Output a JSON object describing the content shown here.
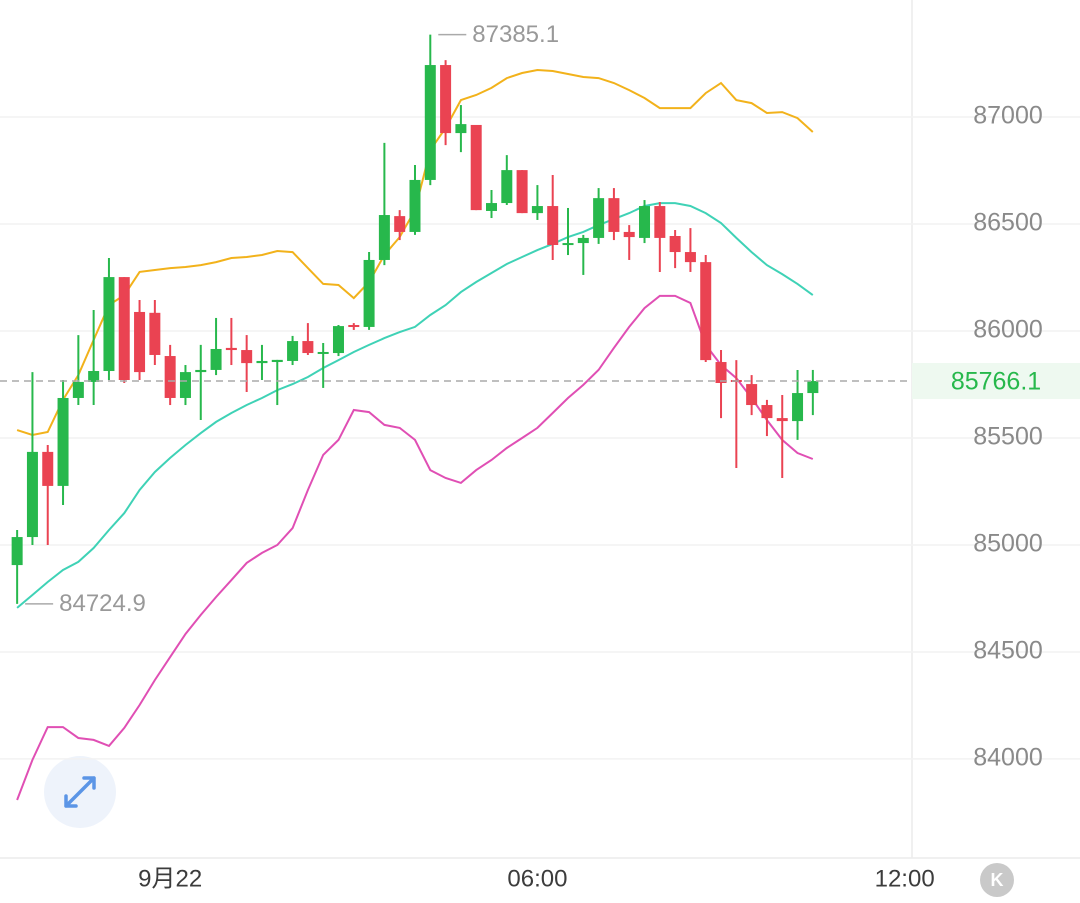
{
  "chart_data": {
    "type": "candlestick",
    "x": [
      -2.5,
      -2.25,
      -2,
      -1.75,
      -1.5,
      -1.25,
      -1,
      -0.75,
      -0.5,
      -0.25,
      0,
      0.25,
      0.5,
      0.75,
      1,
      1.25,
      1.5,
      1.75,
      2,
      2.25,
      2.5,
      2.75,
      3,
      3.25,
      3.5,
      3.75,
      4,
      4.25,
      4.5,
      4.75,
      5,
      5.25,
      5.5,
      5.75,
      6,
      6.25,
      6.5,
      6.75,
      7,
      7.25,
      7.5,
      7.75,
      8,
      8.25,
      8.5,
      8.75,
      9,
      9.25,
      9.5,
      9.75,
      10,
      10.25,
      10.5
    ],
    "open": [
      84906,
      85037,
      85435,
      85276,
      85687,
      85762,
      85813,
      86252,
      86089,
      86085,
      85883,
      85687,
      85808,
      85818,
      85921,
      85911,
      85850,
      85855,
      85860,
      85953,
      85893,
      85897,
      86028,
      86019,
      86332,
      86537,
      86463,
      86706,
      87243,
      86925,
      86963,
      86561,
      86598,
      86752,
      86551,
      86584,
      86402,
      86411,
      86435,
      86621,
      86463,
      86435,
      86584,
      86444,
      86369,
      86322,
      85855,
      85771,
      85752,
      85654,
      85593,
      85579,
      85710
    ],
    "high": [
      85070,
      85808,
      85467,
      85771,
      85981,
      86098,
      86341,
      86252,
      86145,
      86145,
      85935,
      85841,
      85935,
      86061,
      86061,
      85981,
      85935,
      85865,
      85977,
      86037,
      85944,
      86028,
      86037,
      86369,
      86879,
      86565,
      86776,
      87385.1,
      87266,
      87056,
      86963,
      86659,
      86822,
      86752,
      86682,
      86729,
      86575,
      86449,
      86668,
      86668,
      86495,
      86612,
      86603,
      86472,
      86481,
      86355,
      85911,
      85864,
      85794,
      85678,
      85701,
      85818,
      85818
    ],
    "low": [
      84724.9,
      85000,
      85000,
      85187,
      85654,
      85654,
      85771,
      85757,
      85771,
      85841,
      85654,
      85654,
      85584,
      85794,
      85841,
      85715,
      85771,
      85654,
      85841,
      85888,
      85734,
      85883,
      86005,
      86005,
      86308,
      86425,
      86449,
      86682,
      86869,
      86836,
      86565,
      86528,
      86589,
      86551,
      86519,
      86332,
      86355,
      86262,
      86407,
      86425,
      86332,
      86411,
      86276,
      86294,
      86276,
      85855,
      85593,
      85360,
      85607,
      85509,
      85313,
      85491,
      85607
    ],
    "close": [
      85037,
      85435,
      85276,
      85687,
      85762,
      85813,
      86252,
      85771,
      85808,
      85888,
      85687,
      85808,
      85818,
      85916,
      85911,
      85850,
      85860,
      85865,
      85953,
      85897,
      85902,
      86023,
      86019,
      86332,
      86542,
      86463,
      86706,
      87243,
      86925,
      86967,
      86565,
      86598,
      86752,
      86551,
      86584,
      86402,
      86411,
      86435,
      86621,
      86463,
      86439,
      86584,
      86435,
      86369,
      86322,
      85864,
      85757,
      85762,
      85654,
      85593,
      85579,
      85710,
      85766.1
    ],
    "up_color": "#27b84c",
    "down_color": "#ea4352",
    "bands": [
      {
        "color": "#f2b21b",
        "values": [
          85537,
          85514,
          85528,
          85678,
          85794,
          85958,
          86121,
          86168,
          86276,
          86285,
          86294,
          86299,
          86308,
          86322,
          86341,
          86346,
          86355,
          86374,
          86369,
          86294,
          86220,
          86215,
          86154,
          86229,
          86355,
          86439,
          86565,
          86846,
          86949,
          87079,
          87103,
          87136,
          87182,
          87206,
          87220,
          87215,
          87201,
          87187,
          87182,
          87159,
          87126,
          87089,
          87042,
          87042,
          87042,
          87112,
          87159,
          87079,
          87065,
          87019,
          87023,
          86995,
          86930
        ]
      },
      {
        "color": "#3fd2b6",
        "values": [
          84706,
          84766,
          84827,
          84883,
          84921,
          84986,
          85070,
          85149,
          85257,
          85341,
          85407,
          85467,
          85523,
          85575,
          85617,
          85654,
          85687,
          85724,
          85752,
          85785,
          85827,
          85864,
          85902,
          85935,
          85967,
          85995,
          86019,
          86075,
          86121,
          86182,
          86229,
          86271,
          86313,
          86346,
          86378,
          86407,
          86439,
          86463,
          86495,
          86523,
          86551,
          86584,
          86598,
          86598,
          86584,
          86551,
          86505,
          86435,
          86369,
          86308,
          86266,
          86220,
          86168
        ]
      },
      {
        "color": "#e04fb4",
        "values": [
          83808,
          83995,
          84149,
          84149,
          84098,
          84089,
          84061,
          84145,
          84252,
          84369,
          84477,
          84584,
          84673,
          84757,
          84836,
          84916,
          84963,
          85000,
          85079,
          85257,
          85421,
          85491,
          85631,
          85621,
          85561,
          85547,
          85491,
          85350,
          85313,
          85290,
          85350,
          85397,
          85453,
          85500,
          85547,
          85617,
          85687,
          85748,
          85818,
          85921,
          86019,
          86107,
          86164,
          86164,
          86131,
          85935,
          85841,
          85780,
          85687,
          85584,
          85491,
          85430,
          85402
        ]
      }
    ],
    "xlim": [
      -2.78,
      12.12
    ],
    "ylim": [
      83537,
      87547
    ],
    "xticks": [
      {
        "value": 0,
        "label": "9月22"
      },
      {
        "value": 6,
        "label": "06:00"
      },
      {
        "value": 12,
        "label": "12:00"
      }
    ],
    "yticks": [
      84000,
      84500,
      85000,
      85500,
      86000,
      86500,
      87000
    ],
    "grid": true
  },
  "controls": {
    "kline_button": "K"
  }
}
